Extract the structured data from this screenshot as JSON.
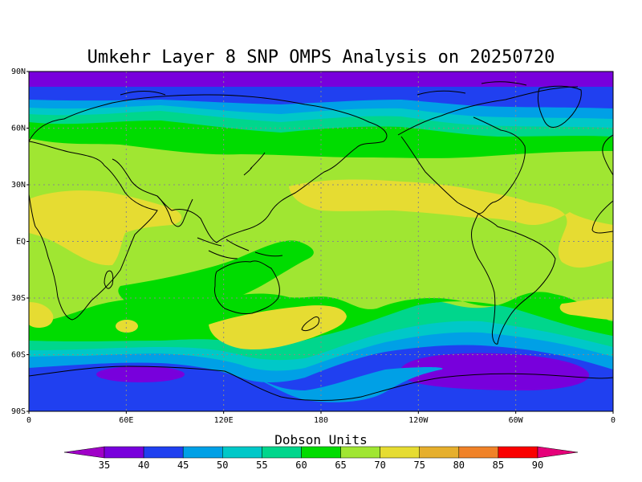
{
  "title": "Umkehr Layer 8 SNP OMPS Analysis on 20250720",
  "lat_ticks": [
    "90N",
    "60N",
    "30N",
    "EQ",
    "30S",
    "60S",
    "90S"
  ],
  "lon_ticks": [
    "0",
    "60E",
    "120E",
    "180",
    "120W",
    "60W",
    "0"
  ],
  "colorbar": {
    "title": "Dobson Units",
    "levels": [
      "35",
      "40",
      "45",
      "50",
      "55",
      "60",
      "65",
      "70",
      "75",
      "80",
      "85",
      "90"
    ],
    "low_color": "#a000c8",
    "high_color": "#e6007a",
    "colors": [
      "#7800dc",
      "#2040f0",
      "#00a0e6",
      "#00c8c8",
      "#00d68c",
      "#00dc00",
      "#a0e632",
      "#e6dc32",
      "#e6af2d",
      "#f08228",
      "#fa0000"
    ]
  },
  "bands": {
    "c40": "#2040f0",
    "c45": "#00a0e6",
    "c50": "#00c8c8",
    "c55": "#00d68c",
    "c60": "#00dc00",
    "c65": "#a0e632",
    "c70": "#e6dc32",
    "c35": "#7800dc"
  }
}
